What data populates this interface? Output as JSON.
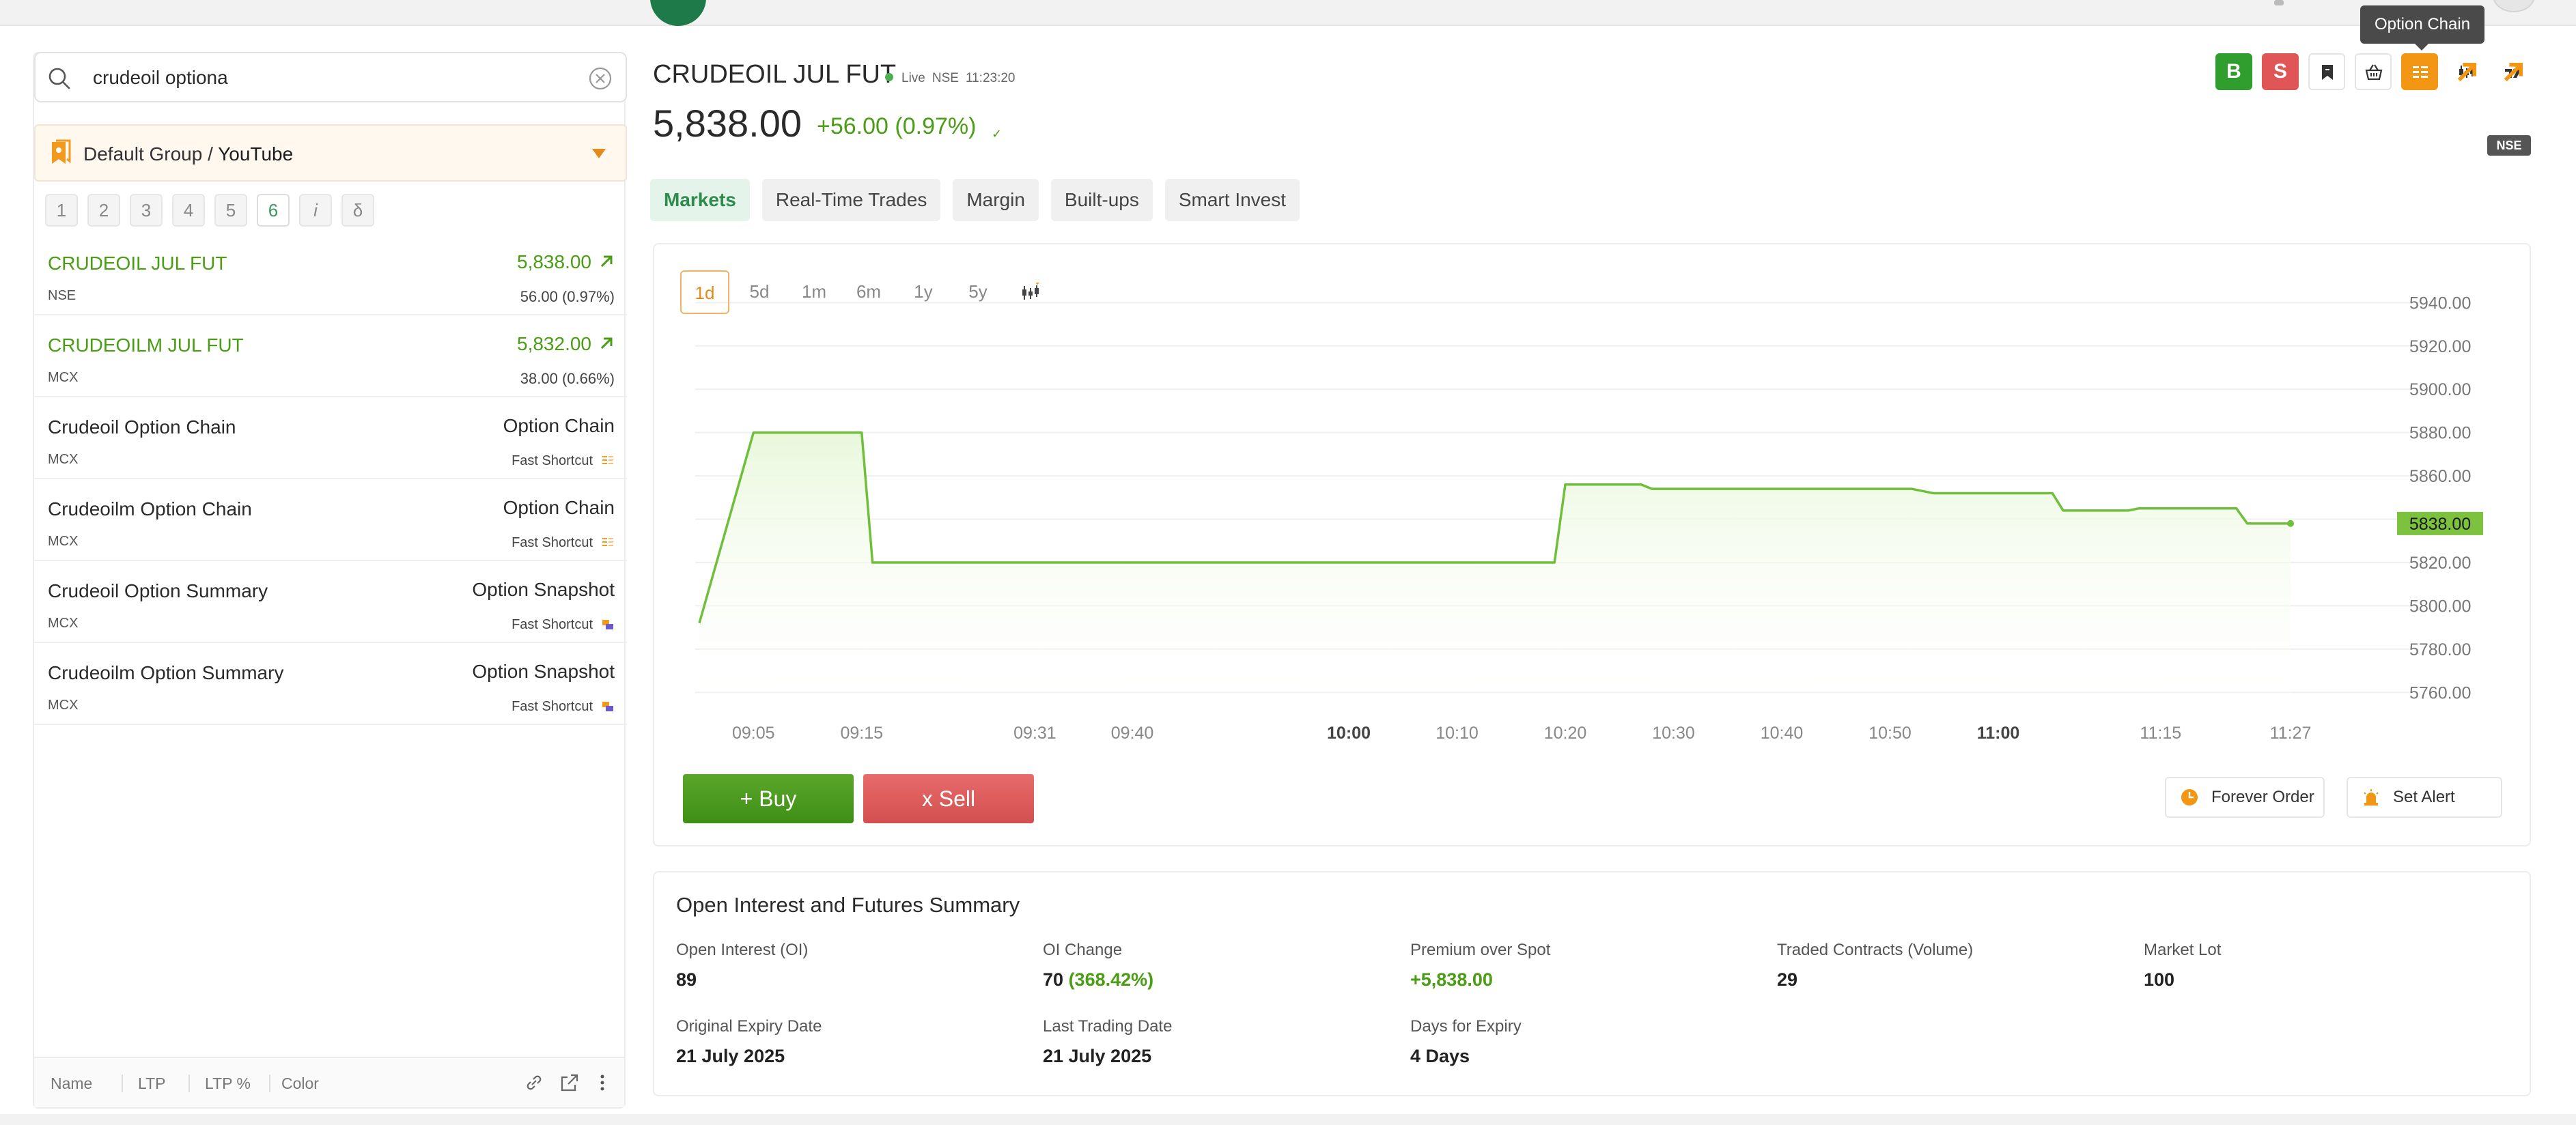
{
  "search": {
    "value": "crudeoil optiona"
  },
  "group": {
    "prefix": "Default Group / ",
    "name": "YouTube"
  },
  "pages": [
    "1",
    "2",
    "3",
    "4",
    "5",
    "6",
    "i",
    "δ"
  ],
  "watchlist": [
    {
      "name": "CRUDEOIL JUL FUT",
      "exchange": "NSE",
      "right": "5,838.00",
      "sub": "56.00 (0.97%)"
    },
    {
      "name": "CRUDEOILM JUL FUT",
      "exchange": "MCX",
      "right": "5,832.00",
      "sub": "38.00 (0.66%)"
    },
    {
      "name": "Crudeoil Option Chain",
      "exchange": "MCX",
      "right": "Option Chain",
      "sub": "Fast Shortcut"
    },
    {
      "name": "Crudeoilm Option Chain",
      "exchange": "MCX",
      "right": "Option Chain",
      "sub": "Fast Shortcut"
    },
    {
      "name": "Crudeoil Option Summary",
      "exchange": "MCX",
      "right": "Option Snapshot",
      "sub": "Fast Shortcut"
    },
    {
      "name": "Crudeoilm Option Summary",
      "exchange": "MCX",
      "right": "Option Snapshot",
      "sub": "Fast Shortcut"
    }
  ],
  "left_footer": {
    "name": "Name",
    "ltp": "LTP",
    "ltp_pct": "LTP %",
    "color": "Color"
  },
  "header": {
    "symbol": "CRUDEOIL JUL FUT",
    "live": "Live",
    "exchange": "NSE",
    "time": "11:23:20",
    "ltp": "5,838.00",
    "change": "+56.00 (0.97%)",
    "exchange_badge": "NSE"
  },
  "toolbar": {
    "buy": "B",
    "sell": "S",
    "tooltip": "Option Chain"
  },
  "tabs": [
    "Markets",
    "Real-Time Trades",
    "Margin",
    "Built-ups",
    "Smart Invest"
  ],
  "ranges": [
    "1d",
    "5d",
    "1m",
    "6m",
    "1y",
    "5y"
  ],
  "chart_data": {
    "type": "area",
    "x": [
      "09:00",
      "09:05",
      "09:15",
      "09:16",
      "09:40",
      "09:41",
      "10:19",
      "10:20",
      "10:27",
      "10:28",
      "10:52",
      "10:53",
      "10:54",
      "11:05",
      "11:06",
      "11:12",
      "11:13",
      "11:22",
      "11:23",
      "11:27"
    ],
    "values": [
      5792,
      5880,
      5880,
      5820,
      5820,
      5820,
      5820,
      5856,
      5856,
      5854,
      5854,
      5853,
      5852,
      5852,
      5844,
      5844,
      5845,
      5845,
      5838,
      5838
    ],
    "x_ticks": [
      "09:05",
      "09:15",
      "09:31",
      "09:40",
      "10:00",
      "10:10",
      "10:20",
      "10:30",
      "10:40",
      "10:50",
      "11:00",
      "11:15",
      "11:27"
    ],
    "x_ticks_bold": [
      "10:00",
      "11:00"
    ],
    "y_ticks": [
      "5940.00",
      "5920.00",
      "5900.00",
      "5880.00",
      "5860.00",
      "5840.00",
      "5820.00",
      "5800.00",
      "5780.00",
      "5760.00"
    ],
    "ylim": [
      5750,
      5948
    ],
    "last_price_label": "5838.00",
    "grid": true,
    "colors": {
      "line": "#6fbf3a",
      "fill": "#e9f8dc",
      "label_bg": "#7cc23f"
    }
  },
  "actions": {
    "buy": "+ Buy",
    "sell": "x Sell",
    "forever": "Forever Order",
    "alert": "Set Alert"
  },
  "summary": {
    "title": "Open Interest and Futures Summary",
    "oi_label": "Open Interest (OI)",
    "oi": "89",
    "oi_change_label": "OI Change",
    "oi_change": "70",
    "oi_change_pct": "(368.42%)",
    "premium_label": "Premium over Spot",
    "premium": "+5,838.00",
    "volume_label": "Traded Contracts (Volume)",
    "volume": "29",
    "lot_label": "Market Lot",
    "lot": "100",
    "orig_expiry_label": "Original Expiry Date",
    "orig_expiry": "21 July 2025",
    "last_trading_label": "Last Trading Date",
    "last_trading": "21 July 2025",
    "days_label": "Days for Expiry",
    "days": "4 Days"
  }
}
